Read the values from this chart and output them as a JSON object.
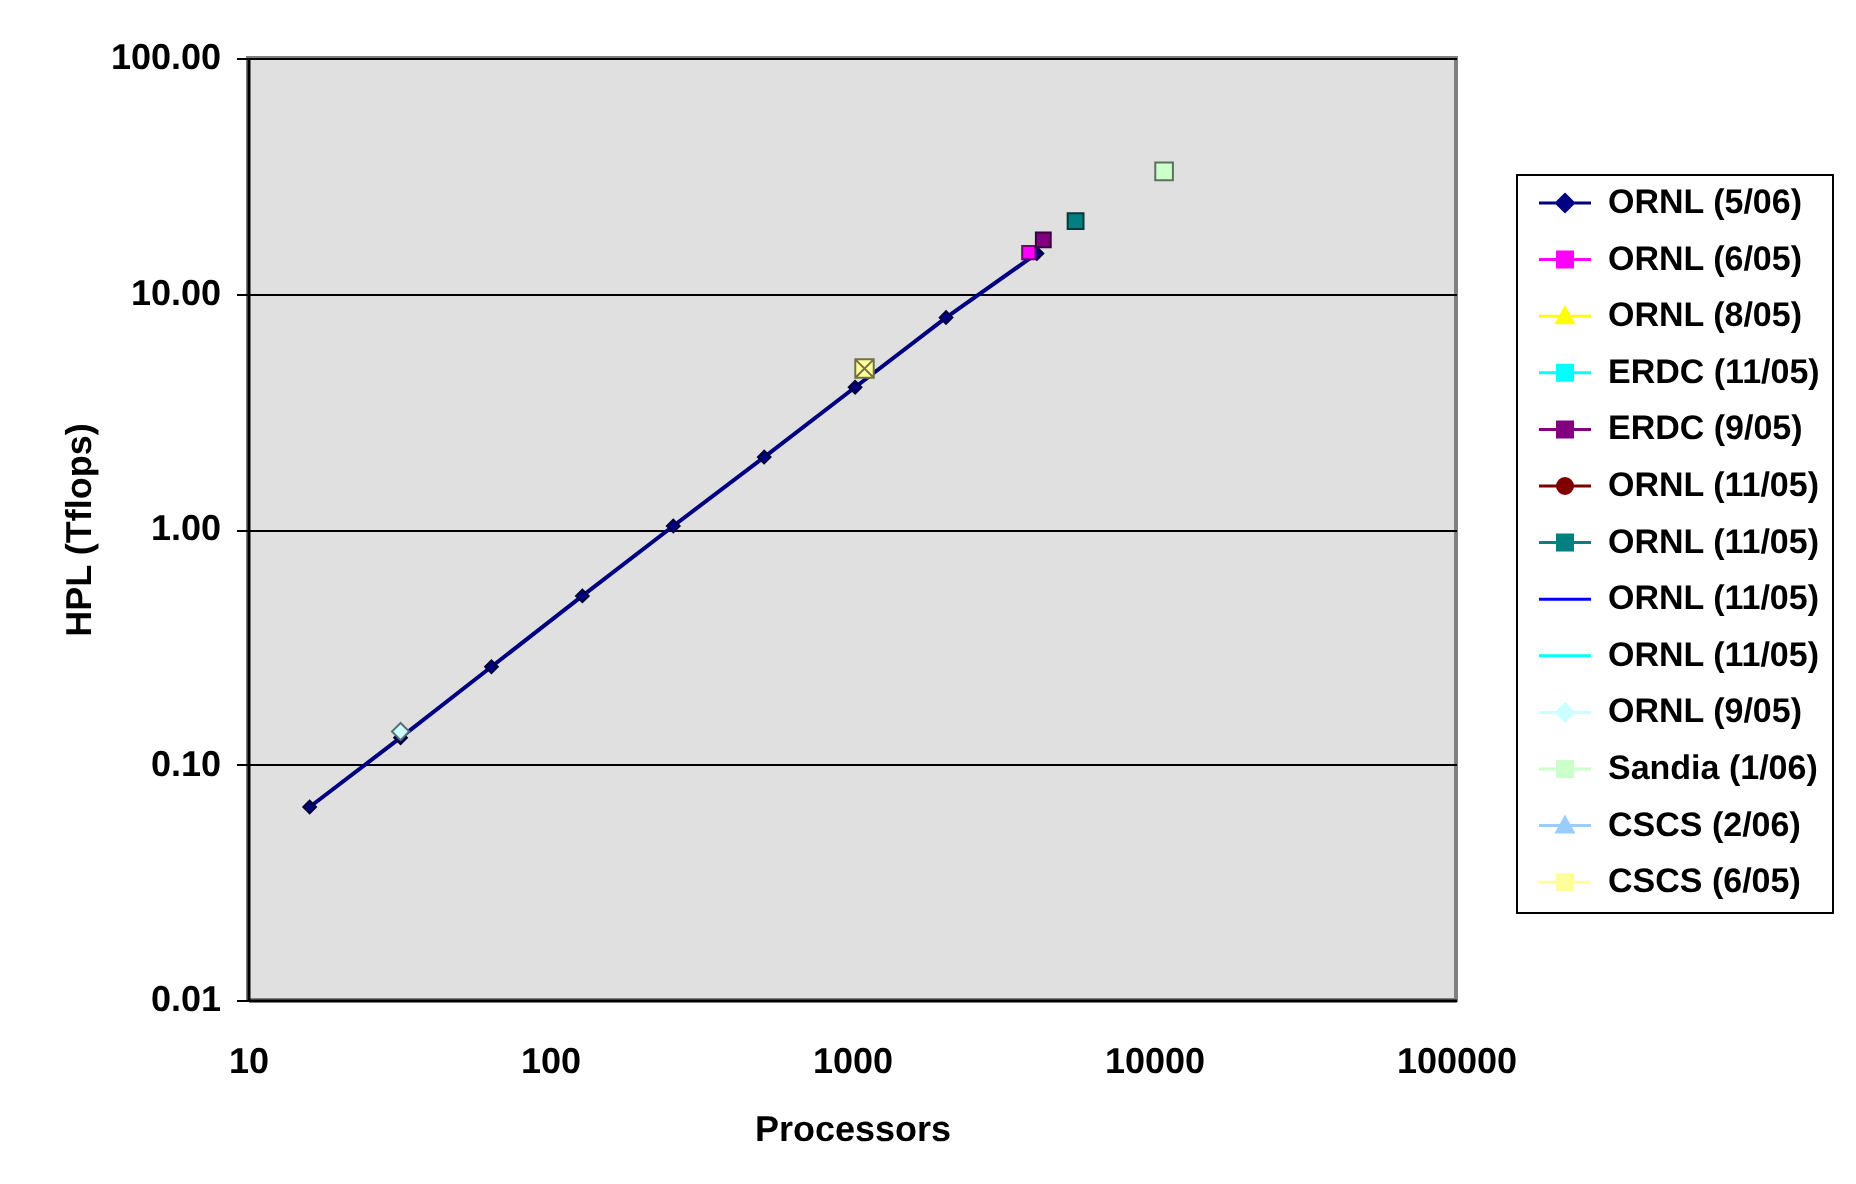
{
  "chart_data": {
    "type": "line",
    "xlabel": "Processors",
    "ylabel": "HPL (Tflops)",
    "log": "xy",
    "xlim": [
      10,
      100000
    ],
    "ylim": [
      0.01,
      100
    ],
    "xticks": [
      10,
      100,
      1000,
      10000,
      100000
    ],
    "yticks": [
      0.01,
      {
        "value": 0.1,
        "label": "0.10"
      },
      {
        "value": 1,
        "label": "1.00"
      },
      {
        "value": 10,
        "label": "10.00"
      },
      {
        "value": 100,
        "label": "100.00"
      }
    ],
    "grid": "y",
    "legend": "right",
    "series": [
      {
        "name": "ORNL (5/06)",
        "color": "#000080",
        "marker": "diamond",
        "x": [
          16,
          32,
          64,
          128,
          256,
          512,
          1024,
          2048,
          4096
        ],
        "values": [
          0.066,
          0.13,
          0.26,
          0.52,
          1.03,
          2.02,
          4.0,
          7.9,
          14.8
        ]
      },
      {
        "name": "ORNL (6/05)",
        "color": "#ff00ff",
        "marker": "square",
        "x": [
          3850
        ],
        "values": [
          14.9
        ]
      },
      {
        "name": "ORNL (8/05)",
        "color": "#ffff00",
        "marker": "triangle"
      },
      {
        "name": "ERDC (11/05)",
        "color": "#00ffff",
        "marker": "cross"
      },
      {
        "name": "ERDC (9/05)",
        "color": "#800080",
        "marker": "square",
        "x": [
          4300
        ],
        "values": [
          16.9
        ]
      },
      {
        "name": "ORNL (11/05)",
        "color": "#800000",
        "marker": "circle"
      },
      {
        "name": "ORNL (11/05)",
        "color": "#008080",
        "marker": "square",
        "x": [
          5500
        ],
        "values": [
          20.3
        ]
      },
      {
        "name": "ORNL (11/05)",
        "color": "#0000ff",
        "marker": "none"
      },
      {
        "name": "ORNL (11/05)",
        "color": "#00ffff",
        "marker": "none"
      },
      {
        "name": "ORNL (9/05)",
        "color": "#ccffff",
        "marker": "diamond",
        "x": [
          32
        ],
        "values": [
          0.138
        ]
      },
      {
        "name": "Sandia (1/06)",
        "color": "#ccffcc",
        "marker": "square",
        "x": [
          10800
        ],
        "values": [
          33.0
        ]
      },
      {
        "name": "CSCS (2/06)",
        "color": "#99ccff",
        "marker": "triangle"
      },
      {
        "name": "CSCS (6/05)",
        "color": "#ffff99",
        "marker": "cross",
        "x": [
          1100
        ],
        "values": [
          4.8
        ]
      }
    ]
  }
}
